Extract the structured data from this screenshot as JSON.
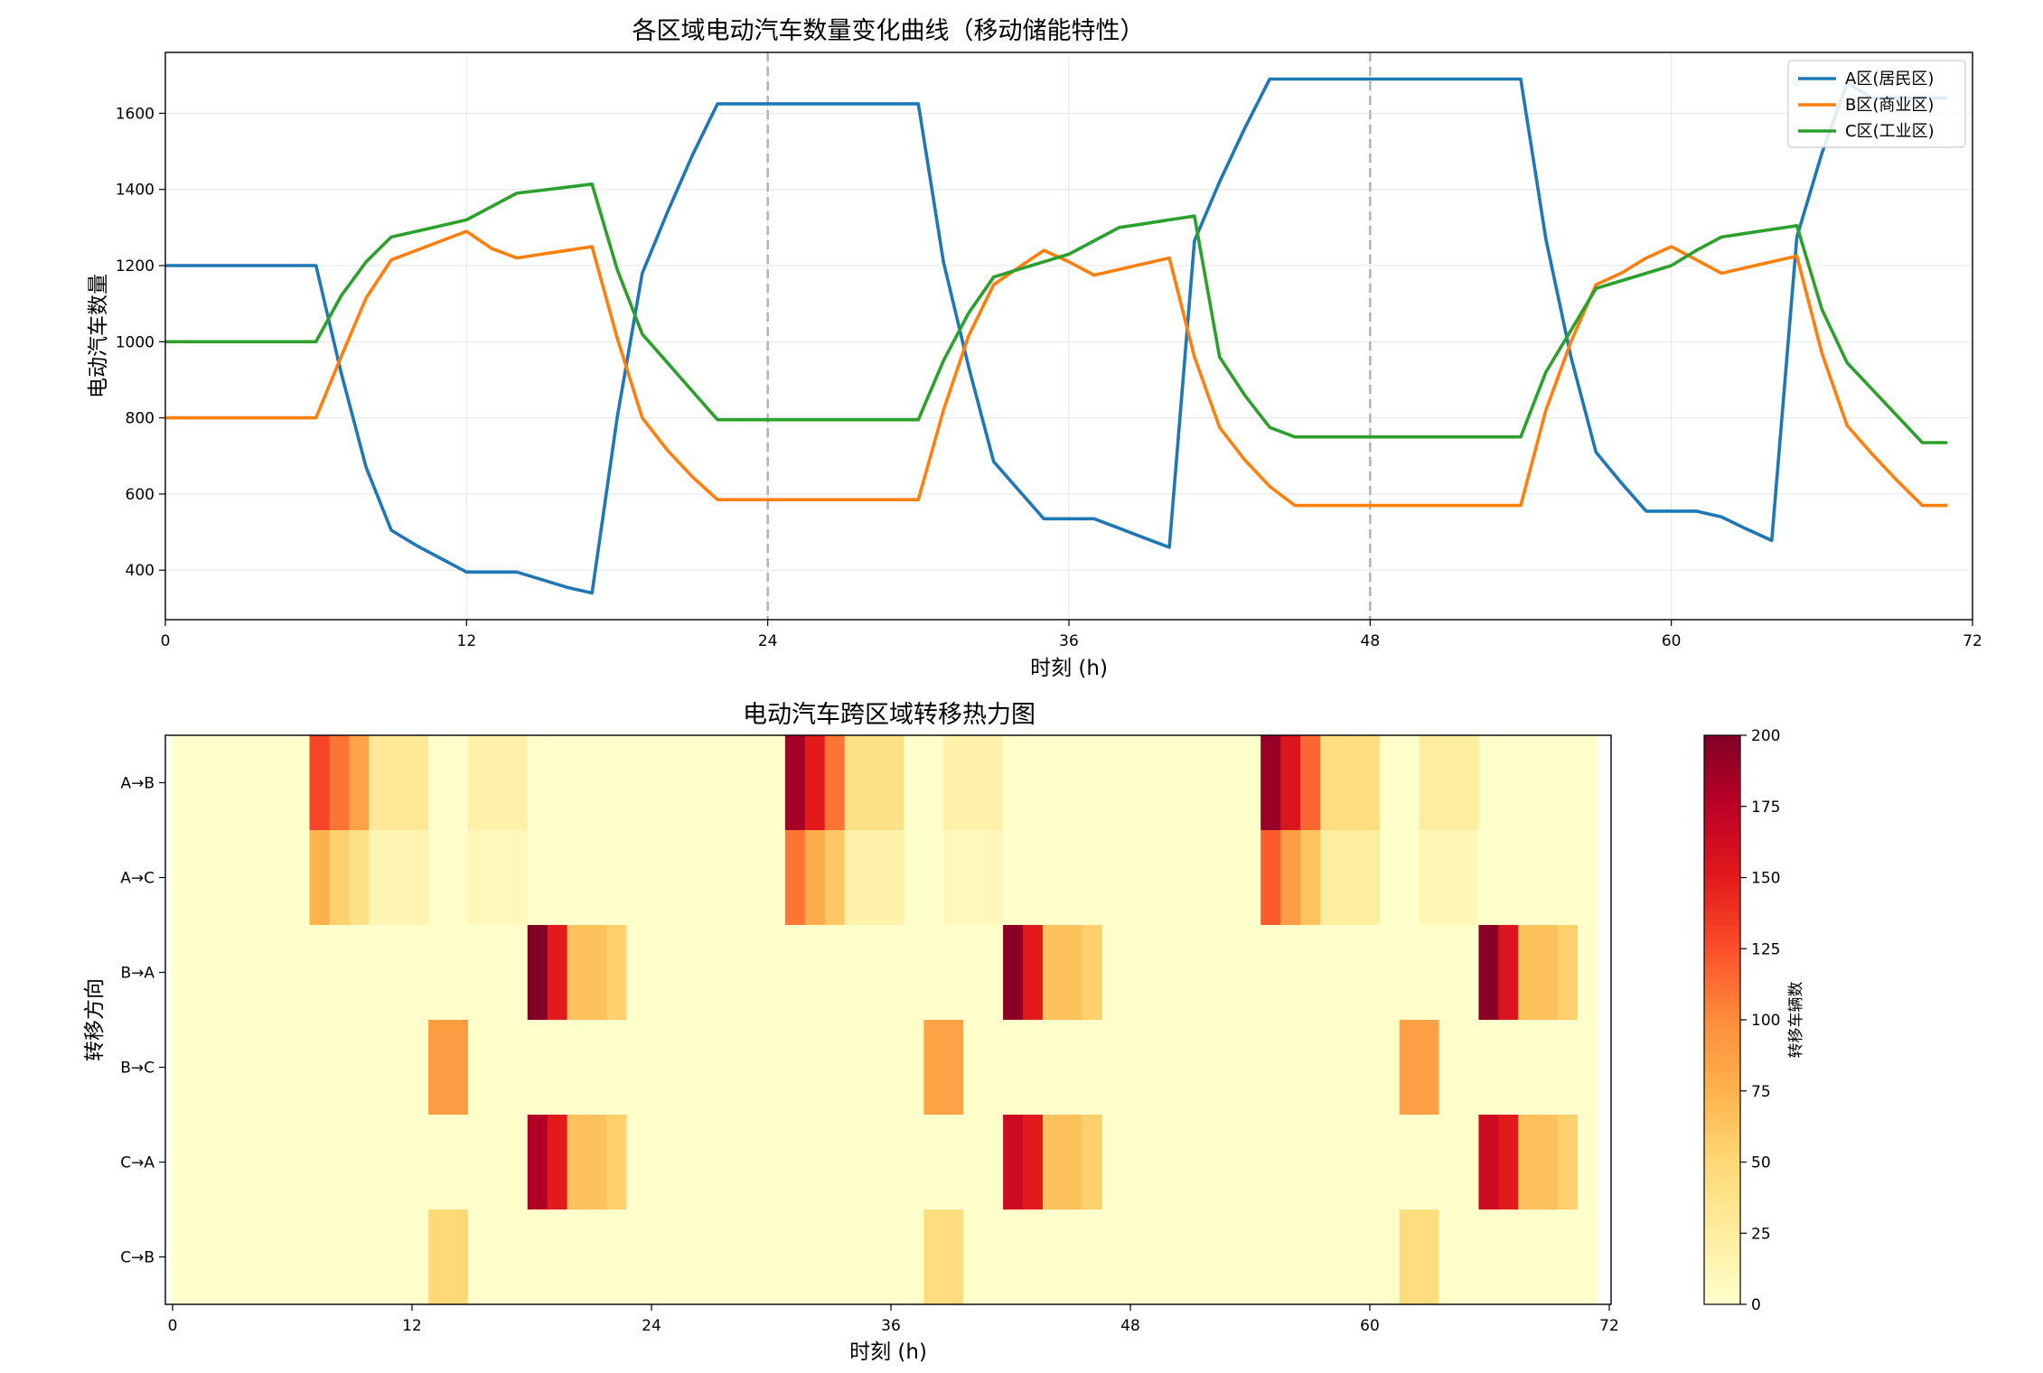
{
  "colors": {
    "series": [
      "#1f77b4",
      "#ff7f0e",
      "#2ca02c"
    ],
    "grid": "#e6e6e6",
    "marker": "#b0b0b0",
    "heatmap_ramp": [
      "#ffffcc",
      "#ffeda0",
      "#fed976",
      "#feb24c",
      "#fd8d3c",
      "#fc4e2a",
      "#e31a1c",
      "#bd0026",
      "#800026"
    ]
  },
  "chart_data": [
    {
      "type": "line",
      "title": "各区域电动汽车数量变化曲线（移动储能特性）",
      "xlabel": "时刻 (h)",
      "ylabel": "电动汽车数量",
      "xlim": [
        0,
        72
      ],
      "ylim": [
        270,
        1760
      ],
      "xticks": [
        0,
        12,
        24,
        36,
        48,
        60,
        72
      ],
      "yticks": [
        400,
        600,
        800,
        1000,
        1200,
        1400,
        1600
      ],
      "grid": true,
      "legend_position": "top-right",
      "vertical_markers": [
        24,
        48
      ],
      "x": [
        0,
        1,
        2,
        3,
        4,
        5,
        6,
        7,
        8,
        9,
        10,
        11,
        12,
        13,
        14,
        15,
        16,
        17,
        18,
        19,
        20,
        21,
        22,
        23,
        24,
        25,
        26,
        27,
        28,
        29,
        30,
        31,
        32,
        33,
        34,
        35,
        36,
        37,
        38,
        39,
        40,
        41,
        42,
        43,
        44,
        45,
        46,
        47,
        48,
        49,
        50,
        51,
        52,
        53,
        54,
        55,
        56,
        57,
        58,
        59,
        60,
        61,
        62,
        63,
        64,
        65,
        66,
        67,
        68,
        69,
        70,
        71
      ],
      "series": [
        {
          "name": "A区(居民区)",
          "values": [
            1200,
            1200,
            1200,
            1200,
            1200,
            1200,
            1200,
            920,
            670,
            505,
            465,
            430,
            395,
            395,
            395,
            375,
            355,
            340,
            800,
            1180,
            1340,
            1490,
            1625,
            1625,
            1625,
            1625,
            1625,
            1625,
            1625,
            1625,
            1625,
            1210,
            935,
            685,
            610,
            535,
            535,
            535,
            510,
            485,
            460,
            1265,
            1420,
            1560,
            1690,
            1690,
            1690,
            1690,
            1690,
            1690,
            1690,
            1690,
            1690,
            1690,
            1690,
            1270,
            960,
            710,
            630,
            555,
            555,
            555,
            540,
            508,
            478,
            1275,
            1495,
            1680,
            1640,
            1640,
            1640,
            1640
          ]
        },
        {
          "name": "B区(商业区)",
          "values": [
            800,
            800,
            800,
            800,
            800,
            800,
            800,
            960,
            1115,
            1215,
            1240,
            1265,
            1290,
            1245,
            1220,
            1230,
            1240,
            1250,
            1010,
            800,
            715,
            645,
            585,
            585,
            585,
            585,
            585,
            585,
            585,
            585,
            585,
            820,
            1015,
            1150,
            1195,
            1240,
            1210,
            1175,
            1190,
            1205,
            1220,
            960,
            775,
            690,
            620,
            570,
            570,
            570,
            570,
            570,
            570,
            570,
            570,
            570,
            570,
            820,
            1000,
            1150,
            1180,
            1220,
            1250,
            1215,
            1180,
            1195,
            1210,
            1225,
            970,
            780,
            705,
            635,
            570,
            570
          ]
        },
        {
          "name": "C区(工业区)",
          "values": [
            1000,
            1000,
            1000,
            1000,
            1000,
            1000,
            1000,
            1120,
            1210,
            1275,
            1290,
            1305,
            1320,
            1355,
            1390,
            1398,
            1406,
            1414,
            1190,
            1020,
            945,
            870,
            795,
            795,
            795,
            795,
            795,
            795,
            795,
            795,
            795,
            950,
            1075,
            1170,
            1190,
            1210,
            1230,
            1265,
            1300,
            1310,
            1320,
            1330,
            960,
            860,
            775,
            750,
            750,
            750,
            750,
            750,
            750,
            750,
            750,
            750,
            750,
            920,
            1030,
            1140,
            1160,
            1180,
            1200,
            1240,
            1275,
            1285,
            1295,
            1305,
            1085,
            945,
            875,
            805,
            735,
            735
          ]
        }
      ]
    },
    {
      "type": "heatmap",
      "title": "电动汽车跨区域转移热力图",
      "xlabel": "时刻 (h)",
      "ylabel": "转移方向",
      "xlim": [
        0,
        72
      ],
      "xticks": [
        0,
        12,
        24,
        36,
        48,
        60,
        72
      ],
      "colorbar": {
        "label": "转移车辆数",
        "min": 0,
        "max": 200,
        "ticks": [
          0,
          25,
          50,
          75,
          100,
          125,
          150,
          175,
          200
        ]
      },
      "rows": [
        "A→B",
        "A→C",
        "B→A",
        "B→C",
        "C→A",
        "C→B"
      ],
      "columns": 72,
      "values": [
        [
          0,
          0,
          0,
          0,
          0,
          0,
          0,
          130,
          110,
          85,
          30,
          30,
          30,
          0,
          0,
          20,
          20,
          20,
          0,
          0,
          0,
          0,
          0,
          0,
          0,
          0,
          0,
          0,
          0,
          0,
          0,
          185,
          150,
          110,
          40,
          40,
          40,
          0,
          0,
          20,
          20,
          20,
          0,
          0,
          0,
          0,
          0,
          0,
          0,
          0,
          0,
          0,
          0,
          0,
          0,
          190,
          155,
          115,
          45,
          45,
          45,
          0,
          0,
          25,
          25,
          25,
          0,
          0,
          0,
          0,
          0,
          0
        ],
        [
          0,
          0,
          0,
          0,
          0,
          0,
          0,
          75,
          55,
          40,
          15,
          15,
          15,
          0,
          0,
          10,
          10,
          10,
          0,
          0,
          0,
          0,
          0,
          0,
          0,
          0,
          0,
          0,
          0,
          0,
          0,
          110,
          80,
          60,
          20,
          20,
          20,
          0,
          0,
          10,
          10,
          10,
          0,
          0,
          0,
          0,
          0,
          0,
          0,
          0,
          0,
          0,
          0,
          0,
          0,
          120,
          90,
          65,
          25,
          25,
          25,
          0,
          0,
          12,
          12,
          12,
          0,
          0,
          0,
          0,
          0,
          0
        ],
        [
          0,
          0,
          0,
          0,
          0,
          0,
          0,
          0,
          0,
          0,
          0,
          0,
          0,
          0,
          0,
          0,
          0,
          0,
          200,
          150,
          65,
          65,
          55,
          0,
          0,
          0,
          0,
          0,
          0,
          0,
          0,
          0,
          0,
          0,
          0,
          0,
          0,
          0,
          0,
          0,
          0,
          0,
          195,
          150,
          65,
          65,
          55,
          0,
          0,
          0,
          0,
          0,
          0,
          0,
          0,
          0,
          0,
          0,
          0,
          0,
          0,
          0,
          0,
          0,
          0,
          0,
          195,
          155,
          65,
          65,
          55,
          0
        ],
        [
          0,
          0,
          0,
          0,
          0,
          0,
          0,
          0,
          0,
          0,
          0,
          0,
          0,
          90,
          90,
          0,
          0,
          0,
          0,
          0,
          0,
          0,
          0,
          0,
          0,
          0,
          0,
          0,
          0,
          0,
          0,
          0,
          0,
          0,
          0,
          0,
          0,
          0,
          85,
          85,
          0,
          0,
          0,
          0,
          0,
          0,
          0,
          0,
          0,
          0,
          0,
          0,
          0,
          0,
          0,
          0,
          0,
          0,
          0,
          0,
          0,
          0,
          88,
          88,
          0,
          0,
          0,
          0,
          0,
          0,
          0,
          0
        ],
        [
          0,
          0,
          0,
          0,
          0,
          0,
          0,
          0,
          0,
          0,
          0,
          0,
          0,
          0,
          0,
          0,
          0,
          0,
          180,
          150,
          65,
          65,
          55,
          0,
          0,
          0,
          0,
          0,
          0,
          0,
          0,
          0,
          0,
          0,
          0,
          0,
          0,
          0,
          0,
          0,
          0,
          0,
          165,
          150,
          65,
          65,
          55,
          0,
          0,
          0,
          0,
          0,
          0,
          0,
          0,
          0,
          0,
          0,
          0,
          0,
          0,
          0,
          0,
          0,
          0,
          0,
          165,
          150,
          65,
          65,
          55,
          0
        ],
        [
          0,
          0,
          0,
          0,
          0,
          0,
          0,
          0,
          0,
          0,
          0,
          0,
          0,
          50,
          50,
          0,
          0,
          0,
          0,
          0,
          0,
          0,
          0,
          0,
          0,
          0,
          0,
          0,
          0,
          0,
          0,
          0,
          0,
          0,
          0,
          0,
          0,
          0,
          45,
          45,
          0,
          0,
          0,
          0,
          0,
          0,
          0,
          0,
          0,
          0,
          0,
          0,
          0,
          0,
          0,
          0,
          0,
          0,
          0,
          0,
          0,
          0,
          45,
          45,
          0,
          0,
          0,
          0,
          0,
          0,
          0,
          0
        ]
      ]
    }
  ]
}
